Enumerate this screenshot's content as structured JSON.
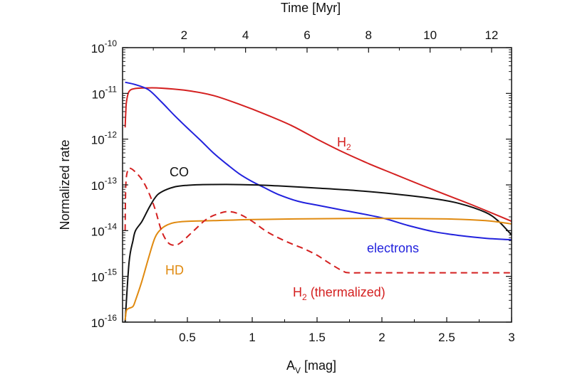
{
  "chart_data": {
    "type": "line",
    "top_axis": {
      "label": "Time [Myr]",
      "ticks": [
        2,
        4,
        6,
        8,
        10,
        12
      ],
      "range": [
        0,
        12.65
      ]
    },
    "xlabel": {
      "main": "A",
      "sub": "V",
      "rest": " [mag]"
    },
    "ylabel": "Normalized rate",
    "xlim": [
      0,
      3
    ],
    "ylim": [
      1e-16,
      1e-10
    ],
    "yscale": "log",
    "x_ticks": [
      "0.5",
      "1",
      "1.5",
      "2",
      "2.5",
      "3"
    ],
    "y_ticks": [
      {
        "base": "10",
        "exp": "-10"
      },
      {
        "base": "10",
        "exp": "-11"
      },
      {
        "base": "10",
        "exp": "-12"
      },
      {
        "base": "10",
        "exp": "-13"
      },
      {
        "base": "10",
        "exp": "-14"
      },
      {
        "base": "10",
        "exp": "-15"
      },
      {
        "base": "10",
        "exp": "-16"
      }
    ],
    "series": [
      {
        "label_main": "H",
        "label_sub": "2",
        "label_rest": "",
        "color": "#d42020",
        "dash": false,
        "points": [
          [
            0.02,
            1.8e-12
          ],
          [
            0.025,
            4e-12
          ],
          [
            0.03,
            6.5e-12
          ],
          [
            0.05,
            1.1e-11
          ],
          [
            0.1,
            1.28e-11
          ],
          [
            0.2,
            1.32e-11
          ],
          [
            0.3,
            1.3e-11
          ],
          [
            0.5,
            1.15e-11
          ],
          [
            0.7,
            9e-12
          ],
          [
            0.9,
            5.8e-12
          ],
          [
            1.1,
            3.5e-12
          ],
          [
            1.3,
            2e-12
          ],
          [
            1.5,
            1e-12
          ],
          [
            1.7,
            5.2e-13
          ],
          [
            1.9,
            2.9e-13
          ],
          [
            2.1,
            1.7e-13
          ],
          [
            2.3,
            1e-13
          ],
          [
            2.5,
            6e-14
          ],
          [
            2.7,
            3.6e-14
          ],
          [
            2.9,
            2.1e-14
          ],
          [
            3.0,
            1.6e-14
          ]
        ]
      },
      {
        "label_main": "electrons",
        "label_sub": "",
        "label_rest": "",
        "color": "#2222dd",
        "dash": false,
        "points": [
          [
            0.02,
            1.75e-11
          ],
          [
            0.1,
            1.55e-11
          ],
          [
            0.2,
            1.2e-11
          ],
          [
            0.3,
            6.5e-12
          ],
          [
            0.4,
            3.3e-12
          ],
          [
            0.5,
            1.75e-12
          ],
          [
            0.6,
            9.5e-13
          ],
          [
            0.7,
            5e-13
          ],
          [
            0.8,
            2.9e-13
          ],
          [
            0.9,
            1.75e-13
          ],
          [
            1.0,
            1.18e-13
          ],
          [
            1.1,
            8.5e-14
          ],
          [
            1.2,
            6.2e-14
          ],
          [
            1.35,
            4.4e-14
          ],
          [
            1.5,
            3.6e-14
          ],
          [
            1.7,
            2.8e-14
          ],
          [
            2.0,
            1.9e-14
          ],
          [
            2.2,
            1.3e-14
          ],
          [
            2.4,
            9.5e-15
          ],
          [
            2.6,
            7.8e-15
          ],
          [
            2.8,
            6.8e-15
          ],
          [
            3.0,
            6.3e-15
          ]
        ]
      },
      {
        "label_main": "CO",
        "label_sub": "",
        "label_rest": "",
        "color": "#111111",
        "dash": false,
        "points": [
          [
            0.02,
            1e-16
          ],
          [
            0.05,
            2e-15
          ],
          [
            0.08,
            6e-15
          ],
          [
            0.1,
            1e-14
          ],
          [
            0.15,
            1.6e-14
          ],
          [
            0.2,
            3e-14
          ],
          [
            0.25,
            5.2e-14
          ],
          [
            0.3,
            7e-14
          ],
          [
            0.4,
            9e-14
          ],
          [
            0.5,
            9.8e-14
          ],
          [
            0.6,
            1.01e-13
          ],
          [
            0.8,
            1.02e-13
          ],
          [
            1.0,
            1e-13
          ],
          [
            1.2,
            9.5e-14
          ],
          [
            1.5,
            8.5e-14
          ],
          [
            1.8,
            7.5e-14
          ],
          [
            2.1,
            6.3e-14
          ],
          [
            2.4,
            5e-14
          ],
          [
            2.6,
            3.9e-14
          ],
          [
            2.8,
            2.5e-14
          ],
          [
            2.9,
            1.6e-14
          ],
          [
            3.0,
            8e-15
          ]
        ]
      },
      {
        "label_main": "HD",
        "label_sub": "",
        "label_rest": "",
        "color": "#e08a10",
        "dash": false,
        "points": [
          [
            0.02,
            1.1e-16
          ],
          [
            0.03,
            1.8e-16
          ],
          [
            0.05,
            2e-16
          ],
          [
            0.08,
            2.2e-16
          ],
          [
            0.1,
            3e-16
          ],
          [
            0.15,
            8e-16
          ],
          [
            0.2,
            2.5e-15
          ],
          [
            0.25,
            7e-15
          ],
          [
            0.3,
            1.1e-14
          ],
          [
            0.35,
            1.35e-14
          ],
          [
            0.4,
            1.5e-14
          ],
          [
            0.5,
            1.6e-14
          ],
          [
            0.7,
            1.65e-14
          ],
          [
            1.0,
            1.75e-14
          ],
          [
            1.5,
            1.82e-14
          ],
          [
            2.0,
            1.85e-14
          ],
          [
            2.5,
            1.8e-14
          ],
          [
            2.8,
            1.65e-14
          ],
          [
            3.0,
            1.4e-14
          ]
        ]
      },
      {
        "label_main": "H",
        "label_sub": "2",
        "label_rest": " (thermalized)",
        "color": "#d42020",
        "dash": true,
        "points": [
          [
            0.02,
            1e-14
          ],
          [
            0.025,
            1e-13
          ],
          [
            0.04,
            2.1e-13
          ],
          [
            0.06,
            2.3e-13
          ],
          [
            0.1,
            1.9e-13
          ],
          [
            0.15,
            1.3e-13
          ],
          [
            0.2,
            7e-14
          ],
          [
            0.25,
            3e-14
          ],
          [
            0.3,
            1e-14
          ],
          [
            0.35,
            5.5e-15
          ],
          [
            0.4,
            4.8e-15
          ],
          [
            0.45,
            5.5e-15
          ],
          [
            0.55,
            1e-14
          ],
          [
            0.65,
            1.8e-14
          ],
          [
            0.75,
            2.4e-14
          ],
          [
            0.82,
            2.6e-14
          ],
          [
            0.9,
            2.3e-14
          ],
          [
            1.0,
            1.6e-14
          ],
          [
            1.1,
            1e-14
          ],
          [
            1.2,
            7e-15
          ],
          [
            1.3,
            5.2e-15
          ],
          [
            1.4,
            4e-15
          ],
          [
            1.5,
            2.9e-15
          ],
          [
            1.6,
            1.9e-15
          ],
          [
            1.7,
            1.3e-15
          ],
          [
            1.75,
            1.2e-15
          ],
          [
            1.9,
            1.2e-15
          ],
          [
            2.2,
            1.2e-15
          ],
          [
            2.6,
            1.2e-15
          ],
          [
            3.0,
            1.2e-15
          ]
        ]
      }
    ]
  }
}
